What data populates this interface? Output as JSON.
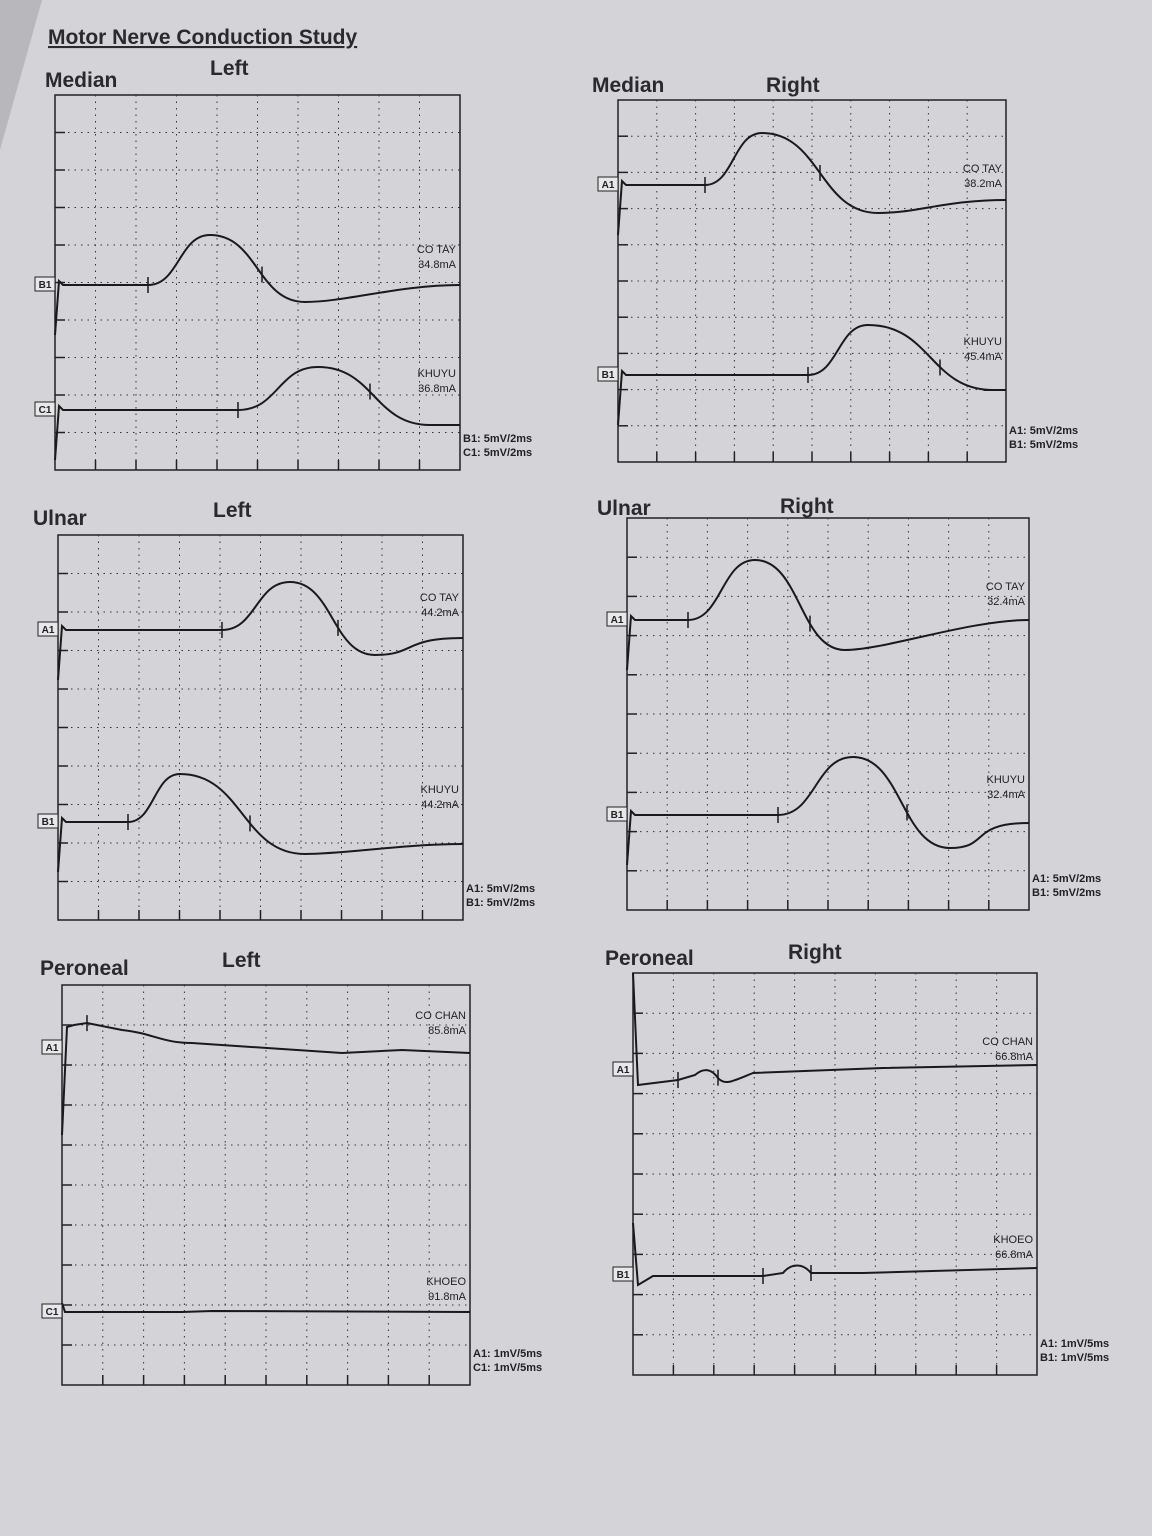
{
  "title": "Motor Nerve Conduction Study",
  "panels": [
    {
      "nerve": "Median",
      "side": "Left",
      "traces": [
        {
          "channel": "B1",
          "site": "CO TAY",
          "current": "34.8mA"
        },
        {
          "channel": "C1",
          "site": "KHUYU",
          "current": "36.8mA"
        }
      ],
      "scales": [
        "B1: 5mV/2ms",
        "C1: 5mV/2ms"
      ]
    },
    {
      "nerve": "Median",
      "side": "Right",
      "traces": [
        {
          "channel": "A1",
          "site": "CO TAY",
          "current": "38.2mA"
        },
        {
          "channel": "B1",
          "site": "KHUYU",
          "current": "45.4mA"
        }
      ],
      "scales": [
        "A1: 5mV/2ms",
        "B1: 5mV/2ms"
      ]
    },
    {
      "nerve": "Ulnar",
      "side": "Left",
      "traces": [
        {
          "channel": "A1",
          "site": "CO TAY",
          "current": "44.2mA"
        },
        {
          "channel": "B1",
          "site": "KHUYU",
          "current": "44.2mA"
        }
      ],
      "scales": [
        "A1: 5mV/2ms",
        "B1: 5mV/2ms"
      ]
    },
    {
      "nerve": "Ulnar",
      "side": "Right",
      "traces": [
        {
          "channel": "A1",
          "site": "CO TAY",
          "current": "32.4mA"
        },
        {
          "channel": "B1",
          "site": "KHUYU",
          "current": "32.4mA"
        }
      ],
      "scales": [
        "A1: 5mV/2ms",
        "B1: 5mV/2ms"
      ]
    },
    {
      "nerve": "Peroneal",
      "side": "Left",
      "traces": [
        {
          "channel": "A1",
          "site": "CO CHAN",
          "current": "85.8mA"
        },
        {
          "channel": "C1",
          "site": "KHOEO",
          "current": "91.8mA"
        }
      ],
      "scales": [
        "A1: 1mV/5ms",
        "C1: 1mV/5ms"
      ]
    },
    {
      "nerve": "Peroneal",
      "side": "Right",
      "traces": [
        {
          "channel": "A1",
          "site": "CO CHAN",
          "current": "66.8mA"
        },
        {
          "channel": "B1",
          "site": "KHOEO",
          "current": "66.8mA"
        }
      ],
      "scales": [
        "A1: 1mV/5ms",
        "B1: 1mV/5ms"
      ]
    }
  ]
}
